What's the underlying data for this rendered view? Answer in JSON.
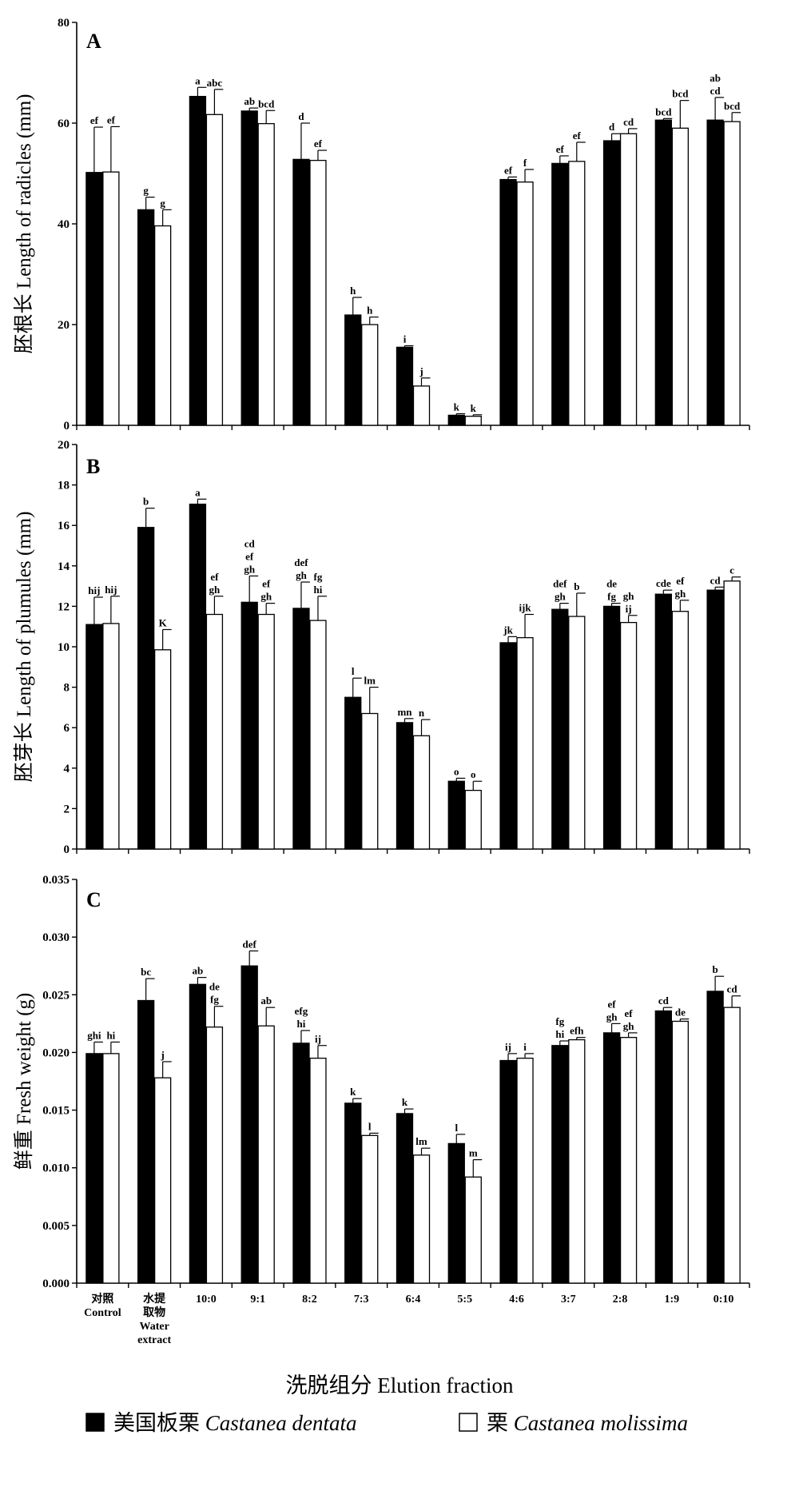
{
  "chart_data": [
    {
      "type": "bar",
      "panel": "A",
      "ylabel": "胚根长 Length of radicles (mm)",
      "ylim": [
        0,
        80
      ],
      "yticks": [
        "0",
        "20",
        "40",
        "60",
        "80"
      ],
      "categories": [
        "对照 Control",
        "水提取物 Water extract",
        "10:0",
        "9:1",
        "8:2",
        "7:3",
        "6:4",
        "5:5",
        "4:6",
        "3:7",
        "2:8",
        "1:9",
        "0:10"
      ],
      "series": [
        {
          "name": "美国板栗 Castanea dentata",
          "values": [
            50.2,
            42.8,
            65.3,
            62.4,
            52.8,
            21.9,
            15.5,
            2.0,
            48.8,
            52.0,
            56.5,
            60.6,
            60.6
          ],
          "errors": [
            9.0,
            2.5,
            1.8,
            0.6,
            7.2,
            3.5,
            0.3,
            0.3,
            0.5,
            1.5,
            1.4,
            0.3,
            4.5
          ],
          "labels": [
            "ef",
            "g",
            "a",
            "ab",
            "d",
            "h",
            "i",
            "k",
            "ef",
            "ef",
            "d",
            "bcd",
            [
              "ab",
              "cd"
            ]
          ]
        },
        {
          "name": "栗 Castanea molissima",
          "values": [
            50.3,
            39.6,
            61.7,
            59.9,
            52.6,
            20.0,
            7.8,
            1.8,
            48.3,
            52.4,
            57.9,
            59.0,
            60.3
          ],
          "errors": [
            9.0,
            3.2,
            5.0,
            2.6,
            2.0,
            1.5,
            1.6,
            0.3,
            2.5,
            3.8,
            1.0,
            5.5,
            1.8
          ],
          "labels": [
            "ef",
            "g",
            "abc",
            "bcd",
            "ef",
            "h",
            "j",
            "k",
            "f",
            "ef",
            "cd",
            "bcd",
            "bcd"
          ]
        }
      ]
    },
    {
      "type": "bar",
      "panel": "B",
      "ylabel": "胚芽长 Length of plumules (mm)",
      "ylim": [
        0,
        20
      ],
      "yticks": [
        "0",
        "2",
        "4",
        "6",
        "8",
        "10",
        "12",
        "14",
        "16",
        "18",
        "20"
      ],
      "categories": [
        "对照 Control",
        "水提取物 Water extract",
        "10:0",
        "9:1",
        "8:2",
        "7:3",
        "6:4",
        "5:5",
        "4:6",
        "3:7",
        "2:8",
        "1:9",
        "0:10"
      ],
      "series": [
        {
          "name": "美国板栗 Castanea dentata",
          "values": [
            11.1,
            15.9,
            17.05,
            12.2,
            11.9,
            7.5,
            6.25,
            3.35,
            10.2,
            11.85,
            12.0,
            12.6,
            12.8
          ],
          "errors": [
            1.35,
            0.95,
            0.25,
            1.3,
            1.3,
            0.95,
            0.2,
            0.15,
            0.3,
            0.3,
            0.15,
            0.2,
            0.15
          ],
          "labels": [
            "hij",
            "b",
            "a",
            [
              "cd",
              "ef",
              "gh"
            ],
            [
              "def",
              "gh"
            ],
            "l",
            "mn",
            "o",
            "jk",
            [
              "def",
              "gh"
            ],
            [
              "de",
              "fg"
            ],
            "cde",
            "cd"
          ],
          "annotation_rows": [
            1,
            1,
            1,
            3,
            2,
            1,
            1,
            1,
            1,
            2,
            2,
            1,
            1
          ]
        },
        {
          "name": "栗 Castanea molissima",
          "values": [
            11.15,
            9.85,
            11.6,
            11.6,
            11.3,
            6.7,
            5.6,
            2.9,
            10.45,
            11.5,
            11.2,
            11.75,
            13.25
          ],
          "errors": [
            1.35,
            1.0,
            0.9,
            0.55,
            1.2,
            1.3,
            0.8,
            0.45,
            1.15,
            1.15,
            0.35,
            0.55,
            0.2
          ],
          "labels": [
            "hij",
            "K",
            [
              "ef",
              "gh"
            ],
            [
              "ef",
              "gh"
            ],
            [
              "fg",
              "hi"
            ],
            "lm",
            "n",
            "o",
            "ijk",
            "b",
            [
              "gh",
              "ij"
            ],
            [
              "ef",
              "gh"
            ],
            "c"
          ]
        }
      ]
    },
    {
      "type": "bar",
      "panel": "C",
      "ylabel": "鲜重 Fresh weight (g)",
      "ylim": [
        0,
        0.035
      ],
      "yticks": [
        "0.000",
        "0.005",
        "0.010",
        "0.015",
        "0.020",
        "0.025",
        "0.030",
        "0.035"
      ],
      "categories": [
        "对照 Control",
        "水提取物 Water extract",
        "10:0",
        "9:1",
        "8:2",
        "7:3",
        "6:4",
        "5:5",
        "4:6",
        "3:7",
        "2:8",
        "1:9",
        "0:10"
      ],
      "series": [
        {
          "name": "美国板栗 Castanea dentata",
          "values": [
            0.0199,
            0.0245,
            0.0259,
            0.0275,
            0.0208,
            0.0156,
            0.0147,
            0.0121,
            0.0193,
            0.0206,
            0.0217,
            0.0236,
            0.0253
          ],
          "errors": [
            0.001,
            0.0019,
            0.0006,
            0.0013,
            0.0011,
            0.0004,
            0.0004,
            0.0008,
            0.0006,
            0.0004,
            0.0008,
            0.0003,
            0.0013
          ],
          "labels": [
            "ghi",
            "bc",
            "ab",
            "def",
            [
              "efg",
              "hi"
            ],
            "k",
            "k",
            "l",
            "ij",
            [
              "fg",
              "hi"
            ],
            [
              "ef",
              "gh"
            ],
            "cd",
            "b"
          ]
        },
        {
          "name": "栗 Castanea molissima",
          "values": [
            0.0199,
            0.0178,
            0.0222,
            0.0223,
            0.0195,
            0.0128,
            0.0111,
            0.0092,
            0.0195,
            0.0211,
            0.0213,
            0.0227,
            0.0239
          ],
          "errors": [
            0.001,
            0.0014,
            0.0018,
            0.0016,
            0.0011,
            0.0002,
            0.0006,
            0.0015,
            0.0004,
            0.0002,
            0.0004,
            0.0002,
            0.001
          ],
          "labels": [
            "hi",
            "j",
            [
              "de",
              "fg"
            ],
            "ab",
            "ij",
            "l",
            "lm",
            "m",
            "i",
            "efh",
            [
              "ef",
              "gh"
            ],
            "de",
            "cd"
          ]
        }
      ]
    }
  ],
  "x_categories_display": [
    [
      "对照",
      "Control"
    ],
    [
      "水提",
      "取物",
      "Water",
      "extract"
    ],
    [
      "10:0"
    ],
    [
      "9:1"
    ],
    [
      "8:2"
    ],
    [
      "7:3"
    ],
    [
      "6:4"
    ],
    [
      "5:5"
    ],
    [
      "4:6"
    ],
    [
      "3:7"
    ],
    [
      "2:8"
    ],
    [
      "1:9"
    ],
    [
      "0:10"
    ]
  ],
  "xlabel": "洗脱组分 Elution fraction",
  "legend": {
    "placement": "bottom",
    "items": [
      {
        "swatch": "#000000",
        "cn": "美国板栗",
        "species": "Castanea dentata"
      },
      {
        "swatch": "#ffffff",
        "cn": "栗",
        "species": "Castanea molissima"
      }
    ]
  },
  "colors": {
    "series1": "#000000",
    "series2": "#ffffff",
    "axis": "#000000"
  }
}
